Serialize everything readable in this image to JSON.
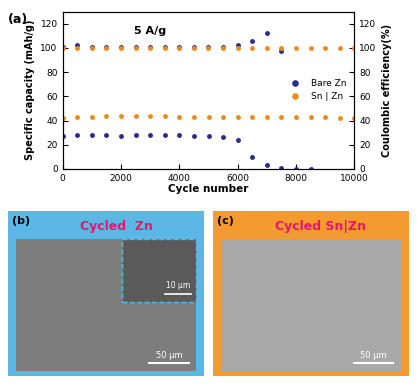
{
  "chart_data": {
    "type": "scatter",
    "panel": "(a)",
    "annotation": "5 A/g",
    "xlabel": "Cycle number",
    "ylabel": "Specific capacity (mAh/g)",
    "y2label": "Coulombic efficiency(%)",
    "x": [
      0,
      500,
      1000,
      1500,
      2000,
      2500,
      3000,
      3500,
      4000,
      4500,
      5000,
      5500,
      6000,
      6500,
      7000,
      7500,
      8000,
      8500,
      9000,
      9500,
      10000
    ],
    "xlim": [
      0,
      10000
    ],
    "xticks": [
      0,
      2000,
      4000,
      6000,
      8000,
      10000
    ],
    "ylim": [
      0,
      130
    ],
    "yticks": [
      0,
      20,
      40,
      60,
      80,
      100,
      120
    ],
    "y2lim": [
      0,
      130
    ],
    "y2ticks": [
      0,
      20,
      40,
      60,
      80,
      100,
      120
    ],
    "legend": "center right",
    "series": [
      {
        "name": "Bare Zn",
        "color": "#2b2b8c",
        "marker": "o",
        "values": [
          27,
          28,
          28,
          28,
          27,
          28,
          28,
          28,
          28,
          27,
          27,
          26,
          24,
          10,
          3,
          1,
          0,
          0,
          null,
          null,
          null
        ]
      },
      {
        "name": "Sn | Zn",
        "color": "#f08a1c",
        "marker": "o",
        "values": [
          42,
          43,
          43,
          44,
          44,
          44,
          44,
          44,
          43,
          43,
          43,
          43,
          43,
          43,
          43,
          43,
          43,
          43,
          43,
          42,
          42
        ]
      },
      {
        "name": "Bare Zn",
        "color": "#2b2b8c",
        "marker": "o",
        "axis": "y2",
        "values": [
          101,
          102,
          101,
          101,
          101,
          101,
          101,
          101,
          101,
          101,
          101,
          101,
          102,
          106,
          112,
          97,
          null,
          null,
          null,
          null,
          null
        ]
      },
      {
        "name": "Sn | Zn",
        "color": "#f08a1c",
        "marker": "o",
        "axis": "y2",
        "values": [
          100,
          100,
          100,
          100,
          100,
          100,
          100,
          100,
          100,
          100,
          100,
          100,
          100,
          100,
          100,
          100,
          100,
          100,
          100,
          100,
          100
        ]
      }
    ]
  },
  "images": [
    {
      "label": "(b)",
      "title": "Cycled  Zn",
      "scale_bar": "50 μm",
      "inset_scale_bar": "10 μm"
    },
    {
      "label": "(c)",
      "title": "Cycled Sn|Zn",
      "scale_bar": "50 μm"
    }
  ]
}
